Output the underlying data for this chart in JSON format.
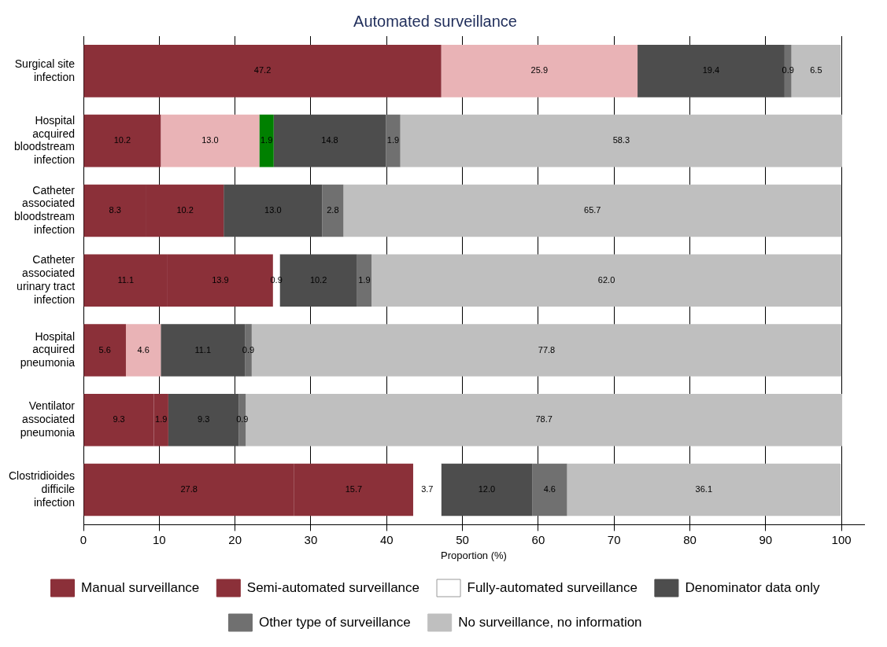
{
  "chart_data": {
    "type": "bar",
    "orientation": "horizontal",
    "stacked": true,
    "title": "Automated surveillance",
    "xlabel": "Proportion (%)",
    "categories": [
      "Surgical site infection",
      "Hospital acquired bloodstream infection",
      "Catheter associated bloodstream infection",
      "Catheter associated urinary tract infection",
      "Hospital acquired pneumonia",
      "Ventilator associated pneumonia",
      "Clostridioides difficile infection"
    ],
    "series": [
      {
        "name": "Manual surveillance",
        "color": "#8b3039",
        "values": [
          47.2,
          10.2,
          8.3,
          11.1,
          5.6,
          9.3,
          27.8
        ],
        "value_labels": [
          "47.2",
          "10.2",
          "8.3",
          "11.1",
          "5.6",
          "9.3",
          "27.8"
        ]
      },
      {
        "name": "Semi-automated surveillance",
        "color": "#8b3039",
        "colors": [
          "#e9b3b6",
          "#e9b3b6",
          "#8b3039",
          "#8b3039",
          "#e9b3b6",
          "#8b3039",
          "#8b3039"
        ],
        "values": [
          25.9,
          13.0,
          10.2,
          13.9,
          4.6,
          1.9,
          15.7
        ],
        "value_labels": [
          "25.9",
          "13.0",
          "10.2",
          "13.9",
          "4.6",
          "1.9",
          "15.7"
        ]
      },
      {
        "name": "Fully-automated surveillance",
        "color": "#ffffff",
        "colors": [
          "#ffffff",
          "#008000",
          "#ffffff",
          "#ffffff",
          "#ffffff",
          "#ffffff",
          "#ffffff"
        ],
        "values": [
          null,
          1.9,
          null,
          0.9,
          null,
          null,
          3.7
        ],
        "value_labels": [
          null,
          "1.9",
          null,
          "0.9",
          null,
          null,
          "3.7"
        ]
      },
      {
        "name": "Denominator data only",
        "color": "#4d4d4d",
        "values": [
          19.4,
          14.8,
          13.0,
          10.2,
          11.1,
          9.3,
          12.0
        ],
        "value_labels": [
          "19.4",
          "14.8",
          "13.0",
          "10.2",
          "11.1",
          "9.3",
          "12.0"
        ]
      },
      {
        "name": "Other type of surveillance",
        "color": "#707070",
        "values": [
          0.9,
          1.9,
          2.8,
          1.9,
          0.9,
          0.9,
          4.6
        ],
        "value_labels": [
          "0.9",
          "1.9",
          "2.8",
          "1.9",
          "0.9",
          "0.9",
          "4.6"
        ]
      },
      {
        "name": "No surveillance, no information",
        "color": "#bfbfbf",
        "values": [
          6.5,
          58.3,
          65.7,
          62.0,
          77.8,
          78.7,
          36.1
        ],
        "value_labels": [
          "6.5",
          "58.3",
          "65.7",
          "62.0",
          "77.8",
          "78.7",
          "36.1"
        ]
      }
    ],
    "xlim": [
      0,
      103
    ],
    "xticks": [
      0,
      10,
      20,
      30,
      40,
      50,
      60,
      70,
      80,
      90,
      100
    ],
    "grid": "x",
    "legend": "bottom"
  }
}
